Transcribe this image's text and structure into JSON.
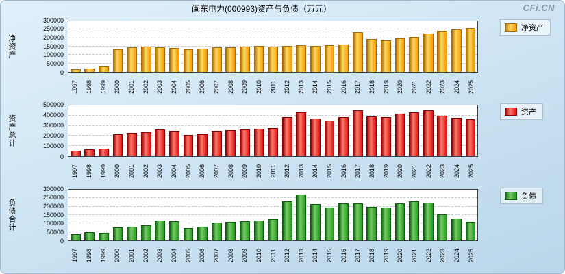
{
  "title": "闽东电力(000993)资产与负债（万元）",
  "watermark": "CFi.CN",
  "years": [
    "1997",
    "1998",
    "1999",
    "2000",
    "2001",
    "2002",
    "2003",
    "2004",
    "2005",
    "2006",
    "2007",
    "2008",
    "2009",
    "2010",
    "2011",
    "2012",
    "2013",
    "2014",
    "2015",
    "2016",
    "2017",
    "2018",
    "2019",
    "2020",
    "2021",
    "2022",
    "2023",
    "2024",
    "2025"
  ],
  "chart_data": [
    {
      "type": "bar",
      "title": "净资产",
      "ylabel": "净资产",
      "legend": "净资产",
      "xlabel": "",
      "ylim": [
        0,
        300000
      ],
      "yticks": [
        0,
        50000,
        100000,
        150000,
        200000,
        250000,
        300000
      ],
      "grid": true,
      "legend_position": "right",
      "colors": {
        "main": "#F59B00",
        "light": "#FFD860",
        "dark": "#A96A00"
      },
      "values": [
        15000,
        20000,
        32000,
        135000,
        148000,
        150000,
        147000,
        140000,
        133000,
        138000,
        148000,
        146000,
        150000,
        153000,
        150000,
        153000,
        158000,
        155000,
        158000,
        163000,
        235000,
        193000,
        188000,
        198000,
        205000,
        228000,
        243000,
        250000,
        258000
      ]
    },
    {
      "type": "bar",
      "title": "资产总计",
      "ylabel": "资产总计",
      "legend": "资产",
      "xlabel": "",
      "ylim": [
        0,
        500000
      ],
      "yticks": [
        0,
        100000,
        200000,
        300000,
        400000,
        500000
      ],
      "grid": true,
      "legend_position": "right",
      "colors": {
        "main": "#E01010",
        "light": "#FF7A6E",
        "dark": "#8E0000"
      },
      "values": [
        52000,
        68000,
        75000,
        213000,
        228000,
        238000,
        265000,
        252000,
        208000,
        218000,
        252000,
        256000,
        265000,
        272000,
        275000,
        385000,
        430000,
        370000,
        352000,
        383000,
        455000,
        393000,
        383000,
        418000,
        435000,
        450000,
        398000,
        380000,
        368000
      ]
    },
    {
      "type": "bar",
      "title": "负债合计",
      "ylabel": "负债合计",
      "legend": "负债",
      "xlabel": "",
      "ylim": [
        0,
        300000
      ],
      "yticks": [
        0,
        50000,
        100000,
        150000,
        200000,
        250000,
        300000
      ],
      "grid": true,
      "legend_position": "right",
      "colors": {
        "main": "#22991F",
        "light": "#77CC66",
        "dark": "#0B5E0B"
      },
      "values": [
        37000,
        48000,
        43000,
        78000,
        80000,
        88000,
        118000,
        112000,
        75000,
        80000,
        104000,
        110000,
        115000,
        119000,
        125000,
        232000,
        272000,
        215000,
        194000,
        220000,
        220000,
        200000,
        195000,
        220000,
        230000,
        222000,
        155000,
        130000,
        110000
      ]
    }
  ]
}
